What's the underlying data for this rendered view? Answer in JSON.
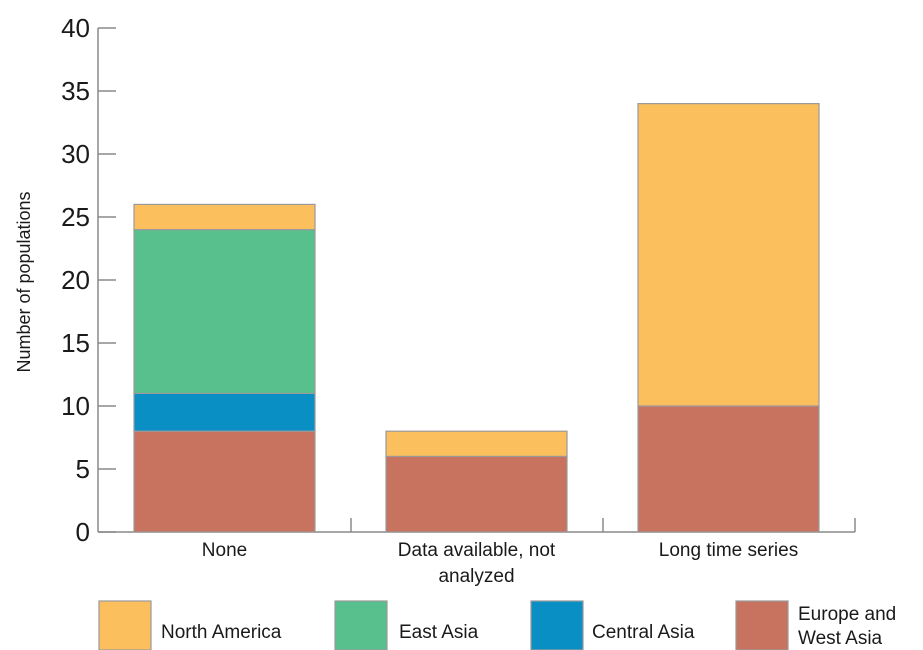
{
  "chart_data": {
    "type": "bar",
    "stacked": true,
    "categories": [
      "None",
      "Data available, not analyzed",
      "Long time series"
    ],
    "series": [
      {
        "name": "Europe and West Asia",
        "color": "#c8735f",
        "values": [
          8,
          6,
          10
        ]
      },
      {
        "name": "Central Asia",
        "color": "#0a8fc5",
        "values": [
          3,
          0,
          0
        ]
      },
      {
        "name": "East Asia",
        "color": "#58c08c",
        "values": [
          13,
          0,
          0
        ]
      },
      {
        "name": "North America",
        "color": "#fbbf5e",
        "values": [
          2,
          2,
          24
        ]
      }
    ],
    "ylabel": "Number of populations",
    "xlabel": "",
    "ylim": [
      0,
      40
    ],
    "yticks": [
      0,
      5,
      10,
      15,
      20,
      25,
      30,
      35,
      40
    ],
    "grid": false,
    "legend_position": "bottom",
    "legend_order": [
      "North America",
      "East Asia",
      "Central Asia",
      "Europe and West Asia"
    ]
  }
}
